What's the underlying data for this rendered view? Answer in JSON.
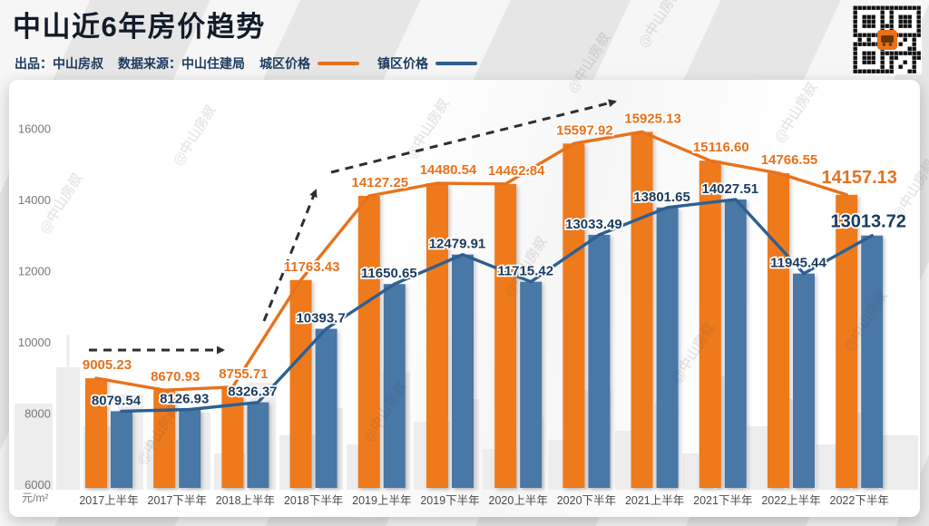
{
  "header": {
    "title": "中山近6年房价趋势",
    "credit_label": "出品：",
    "credit_value": "中山房叔",
    "source_label": "数据来源：",
    "source_value": "中山住建局"
  },
  "watermark": "@中山房叔",
  "chart_data": {
    "type": "bar",
    "title": "中山近6年房价趋势",
    "unit": "元/m²",
    "grid": false,
    "legend_position": "top",
    "categories": [
      "2017上半年",
      "2017下半年",
      "2018上半年",
      "2018下半年",
      "2019上半年",
      "2019下半年",
      "2020上半年",
      "2020下半年",
      "2021上半年",
      "2021下半年",
      "2022上半年",
      "2022下半年"
    ],
    "series": [
      {
        "name": "城区价格",
        "color": "#ee7a1e",
        "line_color": "#e8721c",
        "label_color": "#e8721c",
        "values": [
          9005.23,
          8670.93,
          8755.71,
          11763.43,
          14127.25,
          14480.54,
          14462.84,
          15597.92,
          15925.13,
          15116.6,
          14766.55,
          14157.13
        ],
        "labels": [
          "9005.23",
          "8670.93",
          "8755.71",
          "11763.43",
          "14127.25",
          "14480.54",
          "14462.84",
          "15597.92",
          "15925.13",
          "15116.60",
          "14766.55",
          "14157.13"
        ]
      },
      {
        "name": "镇区价格",
        "color": "#4a77a6",
        "line_color": "#2e5f91",
        "label_color": "#1b3a5e",
        "values": [
          8079.54,
          8126.93,
          8326.37,
          10393.7,
          11650.65,
          12479.91,
          11715.42,
          13033.49,
          13801.65,
          14027.51,
          11945.44,
          13013.72
        ],
        "labels": [
          "8079.54",
          "8126.93",
          "8326.37",
          "10393.7",
          "11650.65",
          "12479.91",
          "11715.42",
          "13033.49",
          "13801.65",
          "14027.51",
          "11945.44",
          "13013.72"
        ]
      }
    ],
    "y_ticks": [
      6000,
      8000,
      10000,
      12000,
      14000,
      16000
    ],
    "ylim": [
      6000,
      16600
    ]
  }
}
